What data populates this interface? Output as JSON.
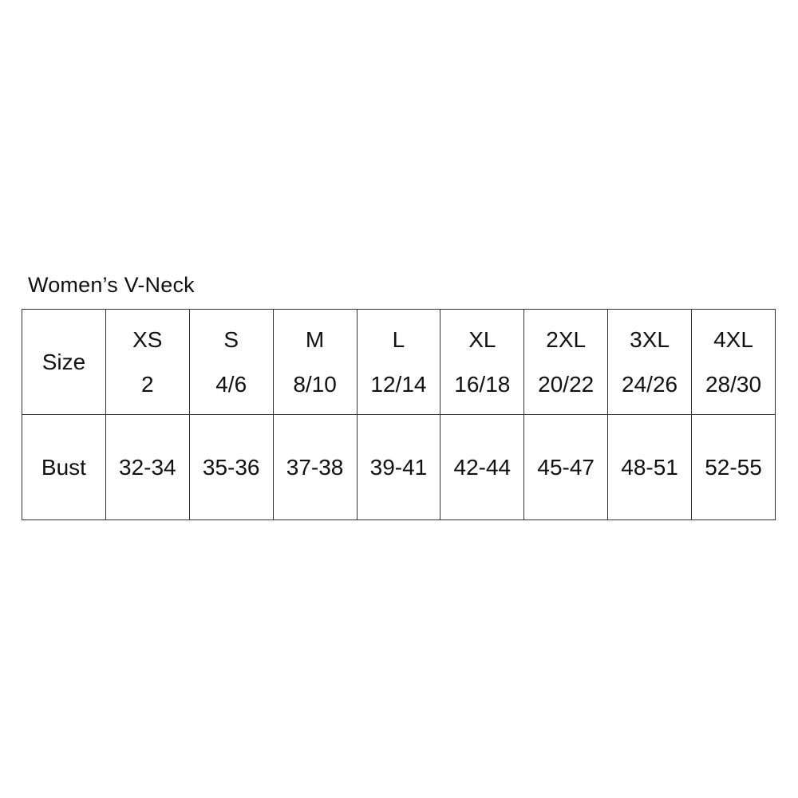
{
  "title": "Women’s V-Neck",
  "table": {
    "row1_header": "Size",
    "row2_header": "Bust",
    "columns": [
      {
        "label": "XS",
        "number": "2",
        "bust": "32-34"
      },
      {
        "label": "S",
        "number": "4/6",
        "bust": "35-36"
      },
      {
        "label": "M",
        "number": "8/10",
        "bust": "37-38"
      },
      {
        "label": "L",
        "number": "12/14",
        "bust": "39-41"
      },
      {
        "label": "XL",
        "number": "16/18",
        "bust": "42-44"
      },
      {
        "label": "2XL",
        "number": "20/22",
        "bust": "45-47"
      },
      {
        "label": "3XL",
        "number": "24/26",
        "bust": "48-51"
      },
      {
        "label": "4XL",
        "number": "28/30",
        "bust": "52-55"
      }
    ]
  },
  "chart_data": {
    "type": "table",
    "title": "Women’s V-Neck",
    "row_headers": [
      "Size",
      "Bust"
    ],
    "size_labels": [
      "XS",
      "S",
      "M",
      "L",
      "XL",
      "2XL",
      "3XL",
      "4XL"
    ],
    "numeric_sizes": [
      "2",
      "4/6",
      "8/10",
      "12/14",
      "16/18",
      "20/22",
      "24/26",
      "28/30"
    ],
    "bust_measurements": [
      "32-34",
      "35-36",
      "37-38",
      "39-41",
      "42-44",
      "45-47",
      "48-51",
      "52-55"
    ],
    "layout": {
      "grid": true,
      "rows": 2,
      "columns": 9
    }
  },
  "colors": {
    "background": "#ffffff",
    "text": "#111111",
    "border": "#333333"
  }
}
